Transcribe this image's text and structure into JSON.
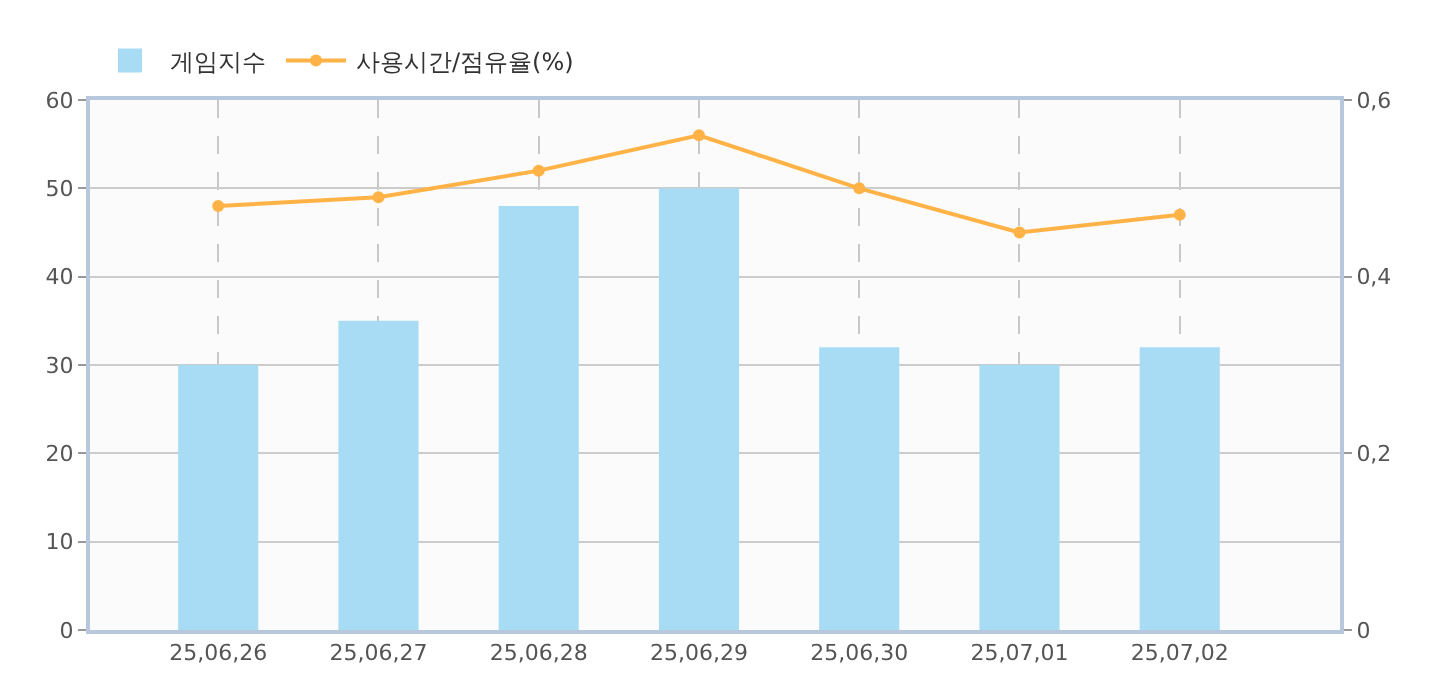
{
  "chart_data": {
    "type": "bar",
    "categories": [
      "25,06,26",
      "25,06,27",
      "25,06,28",
      "25,06,29",
      "25,06,30",
      "25,07,01",
      "25,07,02"
    ],
    "series": [
      {
        "name": "게임지수",
        "color": "#a8dcf4",
        "values": [
          30,
          35,
          48,
          50,
          32,
          30,
          32
        ]
      },
      {
        "name": "사용시간/점유율(%)",
        "type": "line",
        "axis": "y2",
        "color": "#ffb347",
        "values": [
          0.48,
          0.49,
          0.52,
          0.56,
          0.5,
          0.45,
          0.47
        ]
      }
    ],
    "ylim": [
      0,
      60
    ],
    "yticks": [
      0,
      10,
      20,
      30,
      40,
      50,
      60
    ],
    "y2lim": [
      0,
      0.6
    ],
    "y2ticks": [
      0,
      {
        "value": 0.2,
        "label": "0,2"
      },
      {
        "value": 0.4,
        "label": "0,4"
      },
      {
        "value": 0.6,
        "label": "0,6"
      }
    ],
    "grid": true,
    "legend": "top left",
    "marker": "circle",
    "line_style": "solid"
  }
}
